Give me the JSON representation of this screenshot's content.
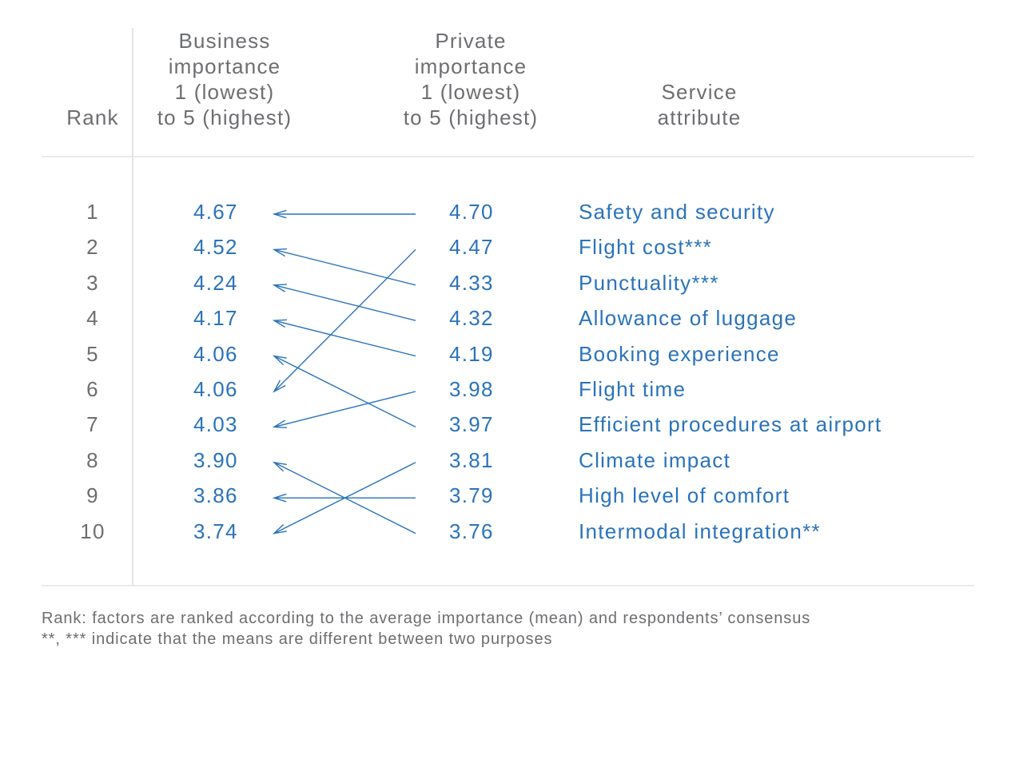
{
  "header": {
    "rank": "Rank",
    "business": [
      "Business",
      "importance",
      "1 (lowest)",
      "to 5 (highest)"
    ],
    "private": [
      "Private",
      "importance",
      "1 (lowest)",
      "to 5 (highest)"
    ],
    "attribute": [
      "Service",
      "attribute"
    ]
  },
  "colors": {
    "accent": "#2a73bb",
    "text": "#6d6e71",
    "rule": "#e3e4e6"
  },
  "rows": [
    {
      "rank": "1",
      "business": "4.67",
      "private": "4.70",
      "attribute": "Safety and security",
      "business_rank_of_attribute": 1
    },
    {
      "rank": "2",
      "business": "4.52",
      "private": "4.47",
      "attribute": "Flight cost***",
      "business_rank_of_attribute": 6
    },
    {
      "rank": "3",
      "business": "4.24",
      "private": "4.33",
      "attribute": "Punctuality***",
      "business_rank_of_attribute": 2
    },
    {
      "rank": "4",
      "business": "4.17",
      "private": "4.32",
      "attribute": "Allowance of luggage",
      "business_rank_of_attribute": 3
    },
    {
      "rank": "5",
      "business": "4.06",
      "private": "4.19",
      "attribute": "Booking experience",
      "business_rank_of_attribute": 4
    },
    {
      "rank": "6",
      "business": "4.06",
      "private": "3.98",
      "attribute": "Flight time",
      "business_rank_of_attribute": 7
    },
    {
      "rank": "7",
      "business": "4.03",
      "private": "3.97",
      "attribute": "Efficient procedures at airport",
      "business_rank_of_attribute": 5
    },
    {
      "rank": "8",
      "business": "3.90",
      "private": "3.81",
      "attribute": "Climate impact",
      "business_rank_of_attribute": 10
    },
    {
      "rank": "9",
      "business": "3.86",
      "private": "3.79",
      "attribute": "High level of comfort",
      "business_rank_of_attribute": 9
    },
    {
      "rank": "10",
      "business": "3.74",
      "private": "3.76",
      "attribute": "Intermodal integration**",
      "business_rank_of_attribute": 8
    }
  ],
  "notes": [
    "Rank: factors are ranked according to the average importance (mean) and respondents’ consensus",
    "**, *** indicate that the means are different between two purposes"
  ]
}
